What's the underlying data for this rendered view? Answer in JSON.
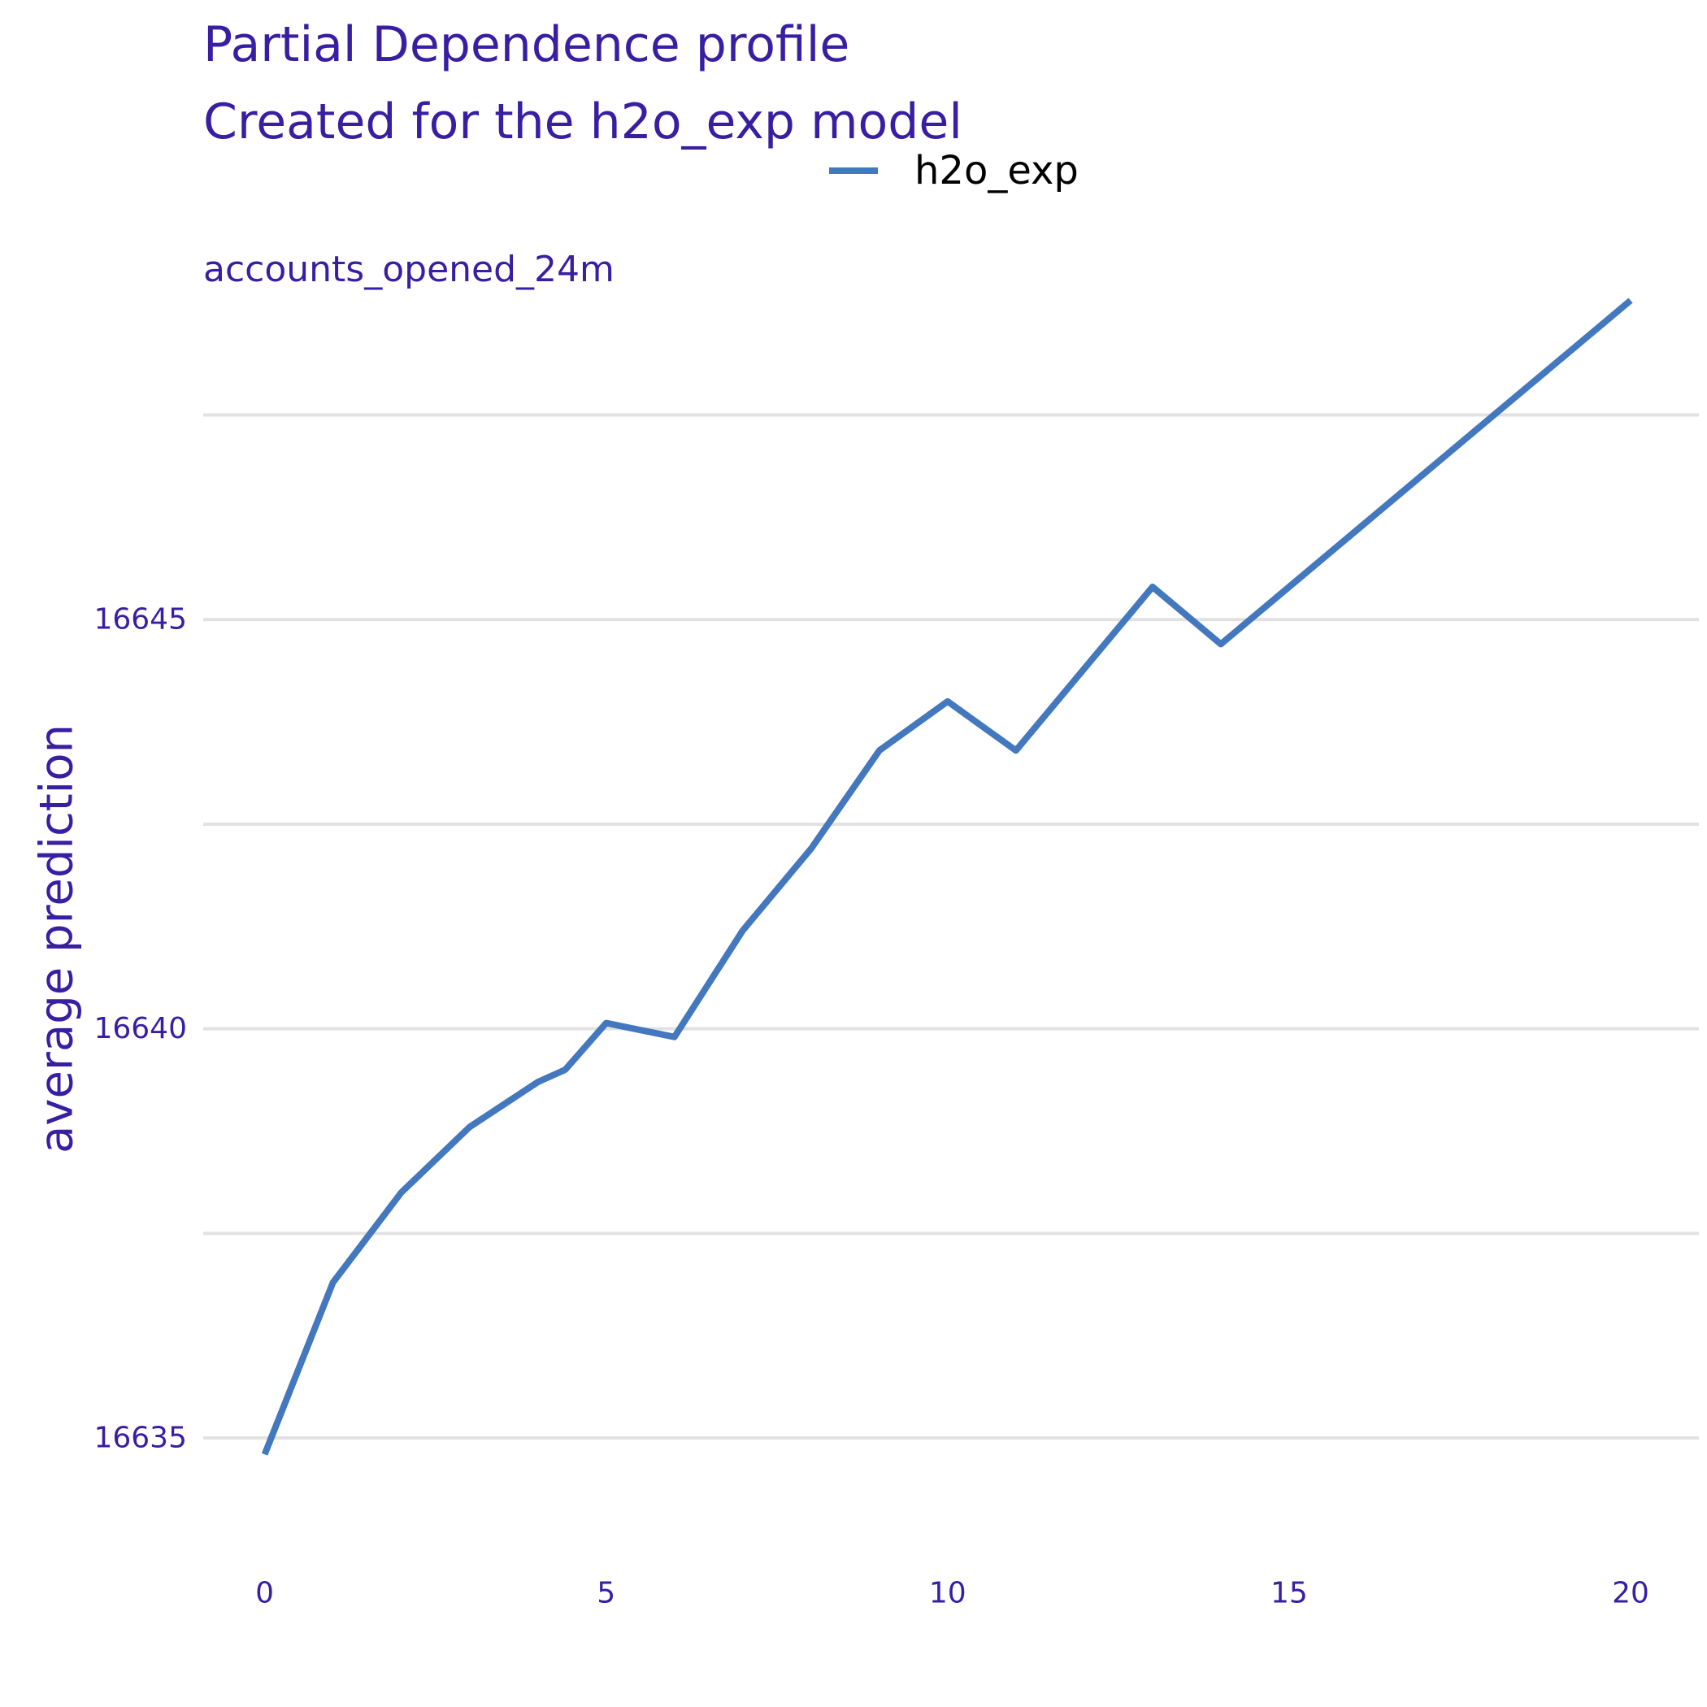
{
  "chart_data": {
    "type": "line",
    "title": "Partial Dependence profile",
    "subtitle": "Created for the h2o_exp model",
    "facet_label": "accounts_opened_24m",
    "xlabel": "",
    "ylabel": "average prediction",
    "legend": {
      "position": "top",
      "entries": [
        "h2o_exp"
      ]
    },
    "grid": {
      "horizontal": true,
      "vertical": false
    },
    "xlim": [
      -0.9,
      21
    ],
    "ylim": [
      16633.6,
      16648.3
    ],
    "x_ticks": [
      0,
      5,
      10,
      15,
      20
    ],
    "y_ticks": [
      16635,
      16640,
      16645
    ],
    "y_minor_gridlines": [
      16637.5,
      16642.5,
      16647.5
    ],
    "series": [
      {
        "name": "h2o_exp",
        "color": "#4378bf",
        "x": [
          0,
          1,
          2,
          3,
          4,
          4.4,
          5,
          6,
          7,
          8,
          9,
          10,
          11,
          12,
          13,
          14,
          15,
          16,
          17,
          18,
          19,
          20
        ],
        "y": [
          16634.8,
          16636.9,
          16638.0,
          16638.8,
          16639.35,
          16639.5,
          16640.07,
          16639.9,
          16641.2,
          16642.2,
          16643.4,
          16644.0,
          16643.4,
          16644.4,
          16645.4,
          16644.7,
          16645.4,
          16646.1,
          16646.8,
          16647.5,
          16648.2,
          16648.9
        ]
      }
    ]
  }
}
